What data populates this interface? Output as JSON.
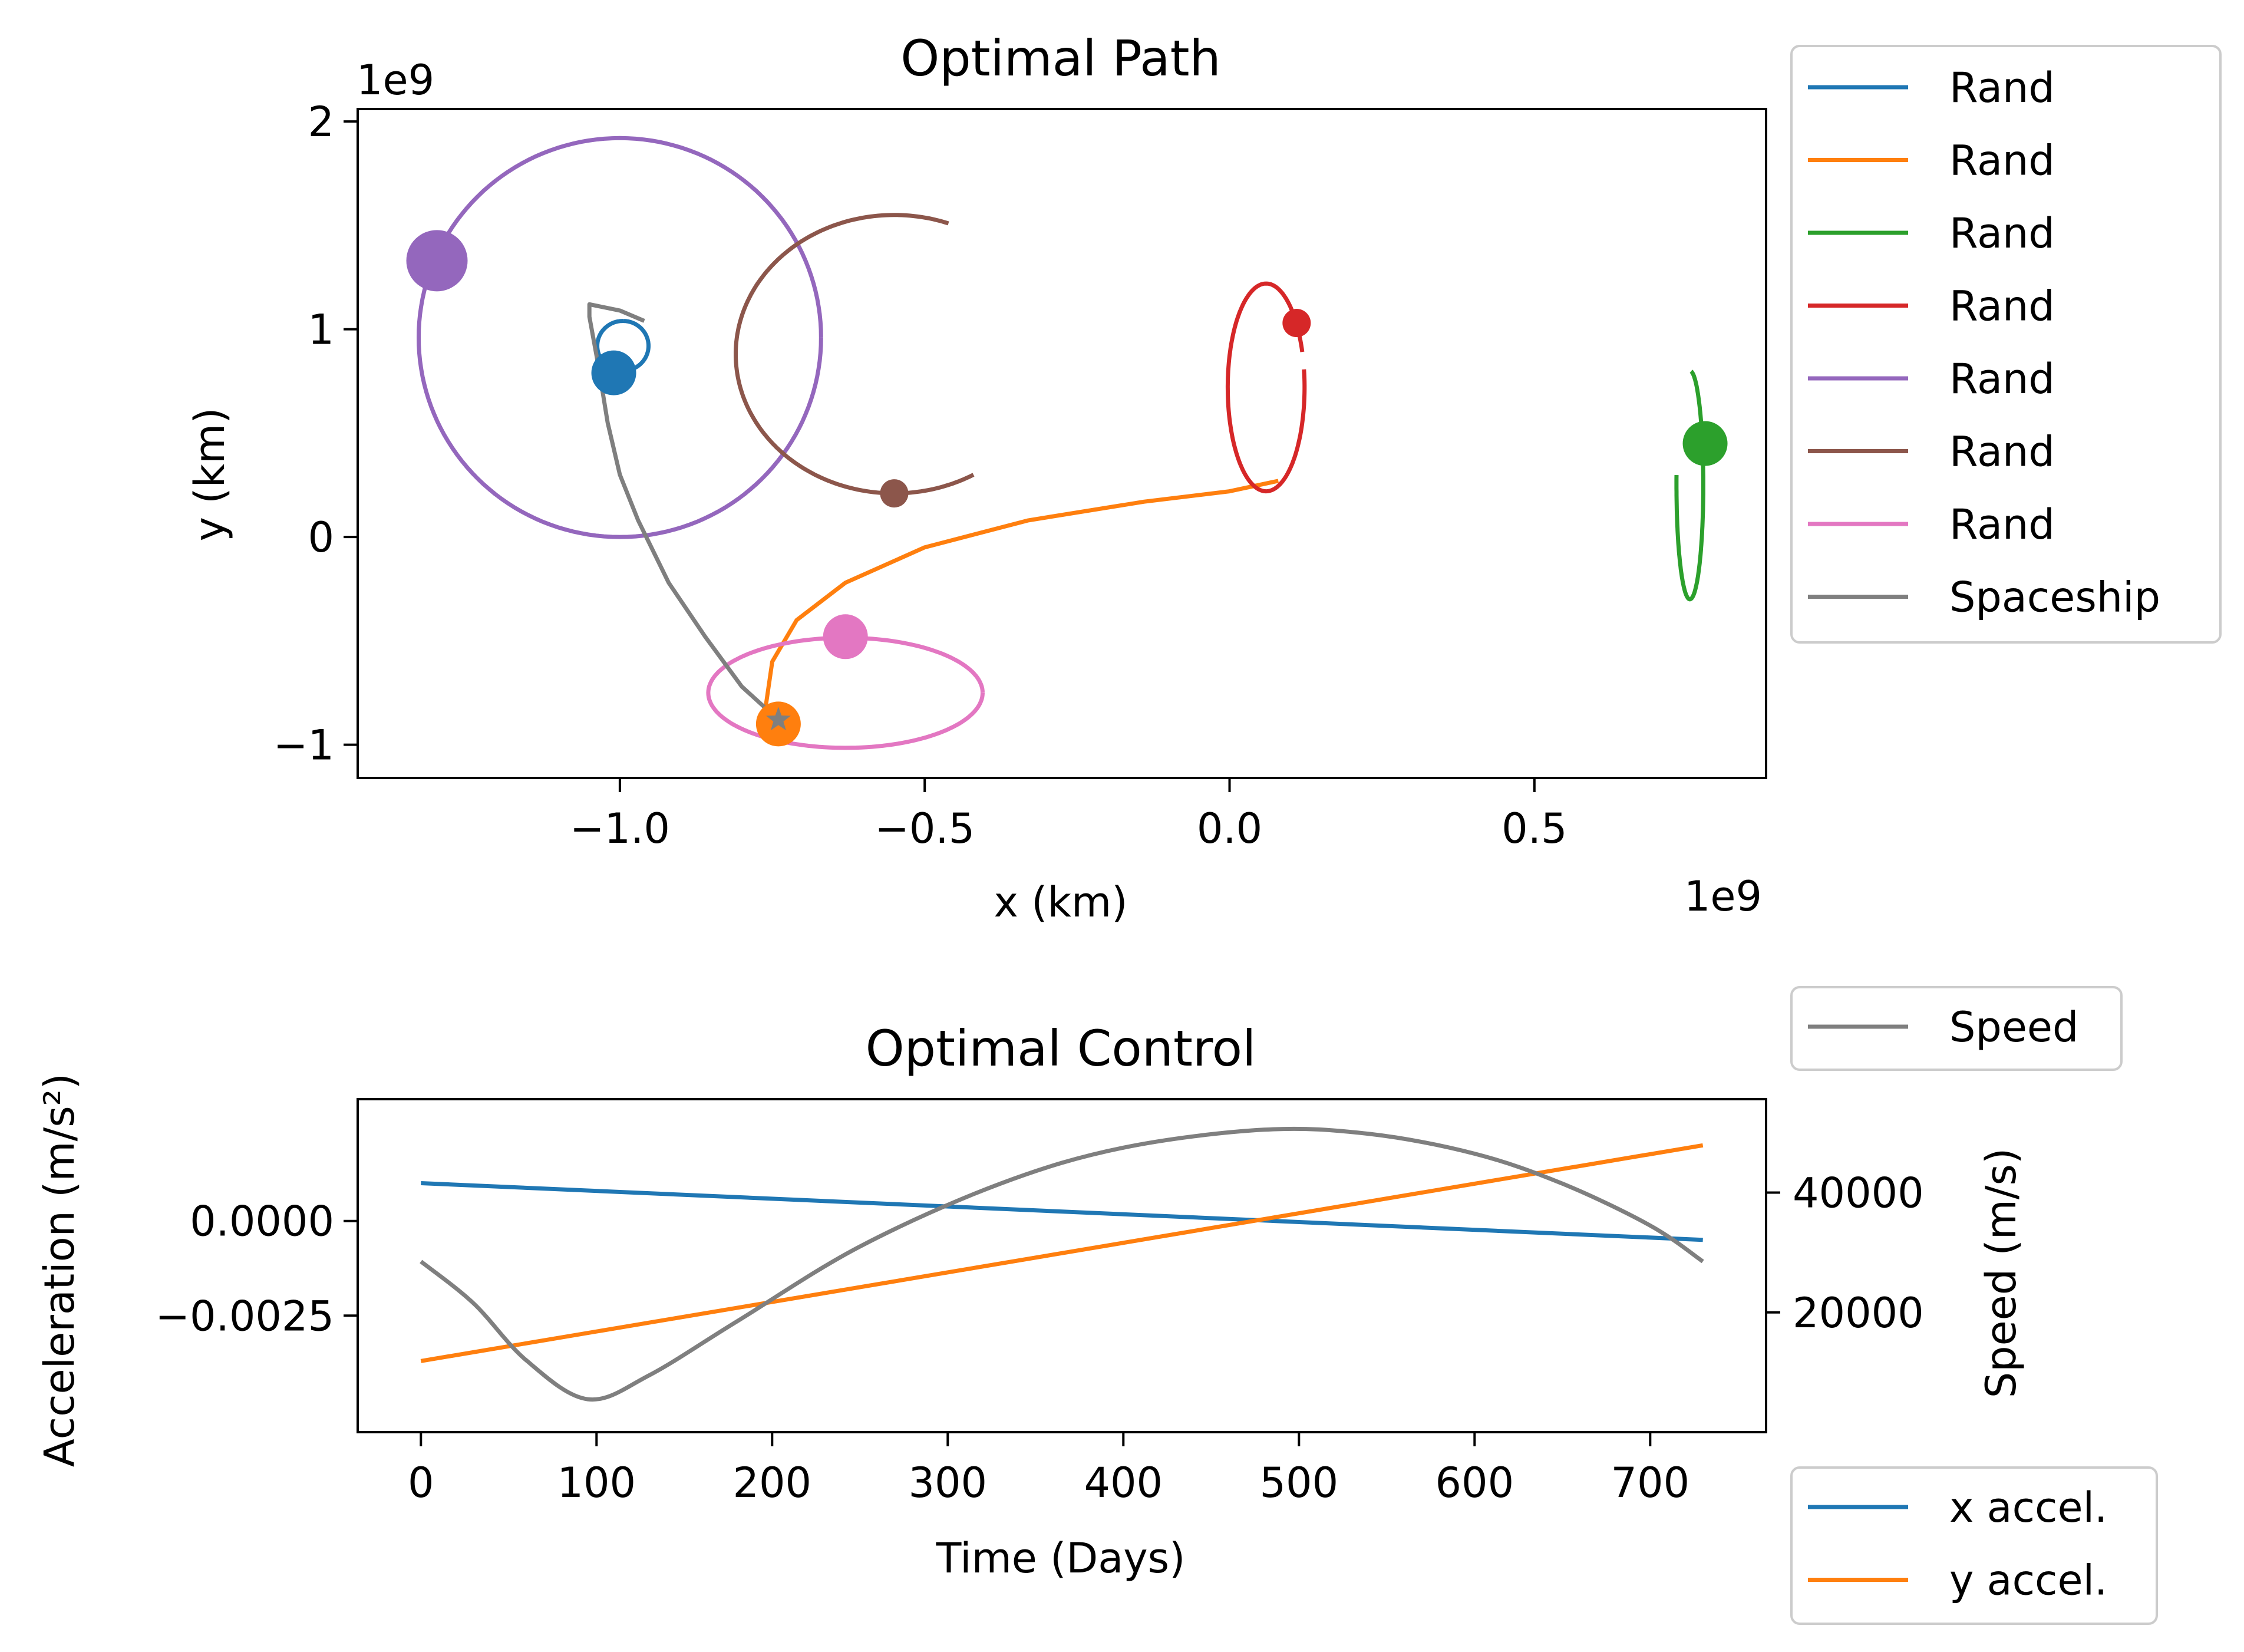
{
  "chart_data": [
    {
      "type": "line",
      "title": "Optimal Path",
      "xlabel": "x (km)",
      "ylabel": "y (km)",
      "x_offset_label": "1e9",
      "y_offset_label": "1e9",
      "xlim": [
        -1.43,
        0.88
      ],
      "ylim": [
        -1.16,
        2.06
      ],
      "xticks": [
        -1.0,
        -0.5,
        0.0,
        0.5
      ],
      "xtick_labels": [
        "−1.0",
        "−0.5",
        "0.0",
        "0.5"
      ],
      "yticks": [
        -1,
        0,
        1,
        2
      ],
      "ytick_labels": [
        "−1",
        "0",
        "1",
        "2"
      ],
      "legend_position": "outside-right",
      "series": [
        {
          "name": "Rand",
          "color": "#1f77b4",
          "shape": "ellipse",
          "center": [
            -0.995,
            0.92
          ],
          "rx": 0.042,
          "ry": 0.12,
          "tilt": 0,
          "t0": 90,
          "t1": 450,
          "marker": [
            -1.01,
            0.79
          ],
          "marker_size": "medium"
        },
        {
          "name": "Rand",
          "color": "#ff7f0e",
          "shape": "polyline",
          "points": [
            [
              -0.755,
              -0.92
            ],
            [
              -0.76,
              -0.8
            ],
            [
              -0.75,
              -0.6
            ],
            [
              -0.71,
              -0.4
            ],
            [
              -0.63,
              -0.22
            ],
            [
              -0.5,
              -0.05
            ],
            [
              -0.33,
              0.08
            ],
            [
              -0.14,
              0.17
            ],
            [
              0.0,
              0.22
            ],
            [
              0.08,
              0.27
            ]
          ],
          "marker": [
            -0.74,
            -0.9
          ],
          "marker_size": "medium"
        },
        {
          "name": "Rand",
          "color": "#2ca02c",
          "shape": "ellipse",
          "center": [
            0.755,
            0.25
          ],
          "rx": 0.022,
          "ry": 0.55,
          "tilt": 0,
          "t0": 175,
          "t1": 445,
          "marker": [
            0.78,
            0.45
          ],
          "marker_size": "medium"
        },
        {
          "name": "Rand",
          "color": "#d62728",
          "shape": "ellipse",
          "center": [
            0.06,
            0.72
          ],
          "rx": 0.063,
          "ry": 0.5,
          "tilt": 0,
          "t0": 20,
          "t1": 370,
          "marker": [
            0.11,
            1.03
          ],
          "marker_size": "small"
        },
        {
          "name": "Rand",
          "color": "#9467bd",
          "shape": "ellipse",
          "center": [
            -1.0,
            0.96
          ],
          "rx": 0.33,
          "ry": 0.96,
          "tilt": 0,
          "t0": 0,
          "t1": 360,
          "marker": [
            -1.3,
            1.33
          ],
          "marker_size": "large"
        },
        {
          "name": "Rand",
          "color": "#8c564b",
          "shape": "ellipse",
          "center": [
            -0.55,
            0.88
          ],
          "rx": 0.26,
          "ry": 0.67,
          "tilt": 0,
          "t0": 70,
          "t1": 300,
          "marker": [
            -0.55,
            0.21
          ],
          "marker_size": "small"
        },
        {
          "name": "Rand",
          "color": "#e377c2",
          "shape": "ellipse",
          "center": [
            -0.63,
            -0.75
          ],
          "rx": 0.225,
          "ry": 0.265,
          "tilt": 0,
          "t0": 0,
          "t1": 360,
          "marker": [
            -0.63,
            -0.48
          ],
          "marker_size": "medium"
        },
        {
          "name": "Spaceship",
          "color": "#7f7f7f",
          "shape": "polyline",
          "points": [
            [
              -0.74,
              -0.88
            ],
            [
              -0.8,
              -0.72
            ],
            [
              -0.86,
              -0.48
            ],
            [
              -0.92,
              -0.22
            ],
            [
              -0.97,
              0.08
            ],
            [
              -1.0,
              0.3
            ],
            [
              -1.02,
              0.55
            ],
            [
              -1.035,
              0.82
            ],
            [
              -1.05,
              1.06
            ],
            [
              -1.05,
              1.12
            ],
            [
              -1.0,
              1.09
            ],
            [
              -0.96,
              1.04
            ]
          ],
          "marker": [
            -0.74,
            -0.88
          ],
          "marker_size": "star"
        }
      ]
    },
    {
      "type": "line",
      "title": "Optimal Control",
      "xlabel": "Time (Days)",
      "ylabel": "Acceleration (m/s²)",
      "ylabel_right": "Speed (m/s)",
      "xlim": [
        -36,
        766
      ],
      "ylim": [
        -0.00558,
        0.00322
      ],
      "ylim_right": [
        0,
        55600
      ],
      "xticks": [
        0,
        100,
        200,
        300,
        400,
        500,
        600,
        700
      ],
      "xtick_labels": [
        "0",
        "100",
        "200",
        "300",
        "400",
        "500",
        "600",
        "700"
      ],
      "yticks": [
        0.0,
        -0.0025
      ],
      "ytick_labels": [
        "0.0000",
        "−0.0025"
      ],
      "yticks_right": [
        20000,
        40000
      ],
      "ytick_labels_right": [
        "20000",
        "40000"
      ],
      "legend_speed_position": "above-right",
      "legend_accel_position": "below-right",
      "series": [
        {
          "name": "x accel.",
          "color": "#1f77b4",
          "axis": "left",
          "x": [
            0,
            730
          ],
          "y": [
            0.001,
            -0.0005
          ]
        },
        {
          "name": "y accel.",
          "color": "#ff7f0e",
          "axis": "left",
          "x": [
            0,
            730
          ],
          "y": [
            -0.0037,
            0.002
          ]
        },
        {
          "name": "Speed",
          "color": "#7f7f7f",
          "axis": "right",
          "x": [
            0,
            30,
            60,
            95,
            130,
            180,
            250,
            330,
            400,
            480,
            540,
            600,
            650,
            700,
            730
          ],
          "y": [
            28500,
            21500,
            12000,
            5500,
            9500,
            18500,
            31000,
            41500,
            47500,
            50500,
            49800,
            46500,
            41500,
            34500,
            28500
          ]
        }
      ]
    }
  ],
  "legend_top": {
    "entries": [
      {
        "label": "Rand",
        "color": "#1f77b4"
      },
      {
        "label": "Rand",
        "color": "#ff7f0e"
      },
      {
        "label": "Rand",
        "color": "#2ca02c"
      },
      {
        "label": "Rand",
        "color": "#d62728"
      },
      {
        "label": "Rand",
        "color": "#9467bd"
      },
      {
        "label": "Rand",
        "color": "#8c564b"
      },
      {
        "label": "Rand",
        "color": "#e377c2"
      },
      {
        "label": "Spaceship",
        "color": "#7f7f7f"
      }
    ]
  },
  "legend_speed": {
    "entries": [
      {
        "label": "Speed",
        "color": "#7f7f7f"
      }
    ]
  },
  "legend_accel": {
    "entries": [
      {
        "label": "x accel.",
        "color": "#1f77b4"
      },
      {
        "label": "y accel.",
        "color": "#ff7f0e"
      }
    ]
  }
}
